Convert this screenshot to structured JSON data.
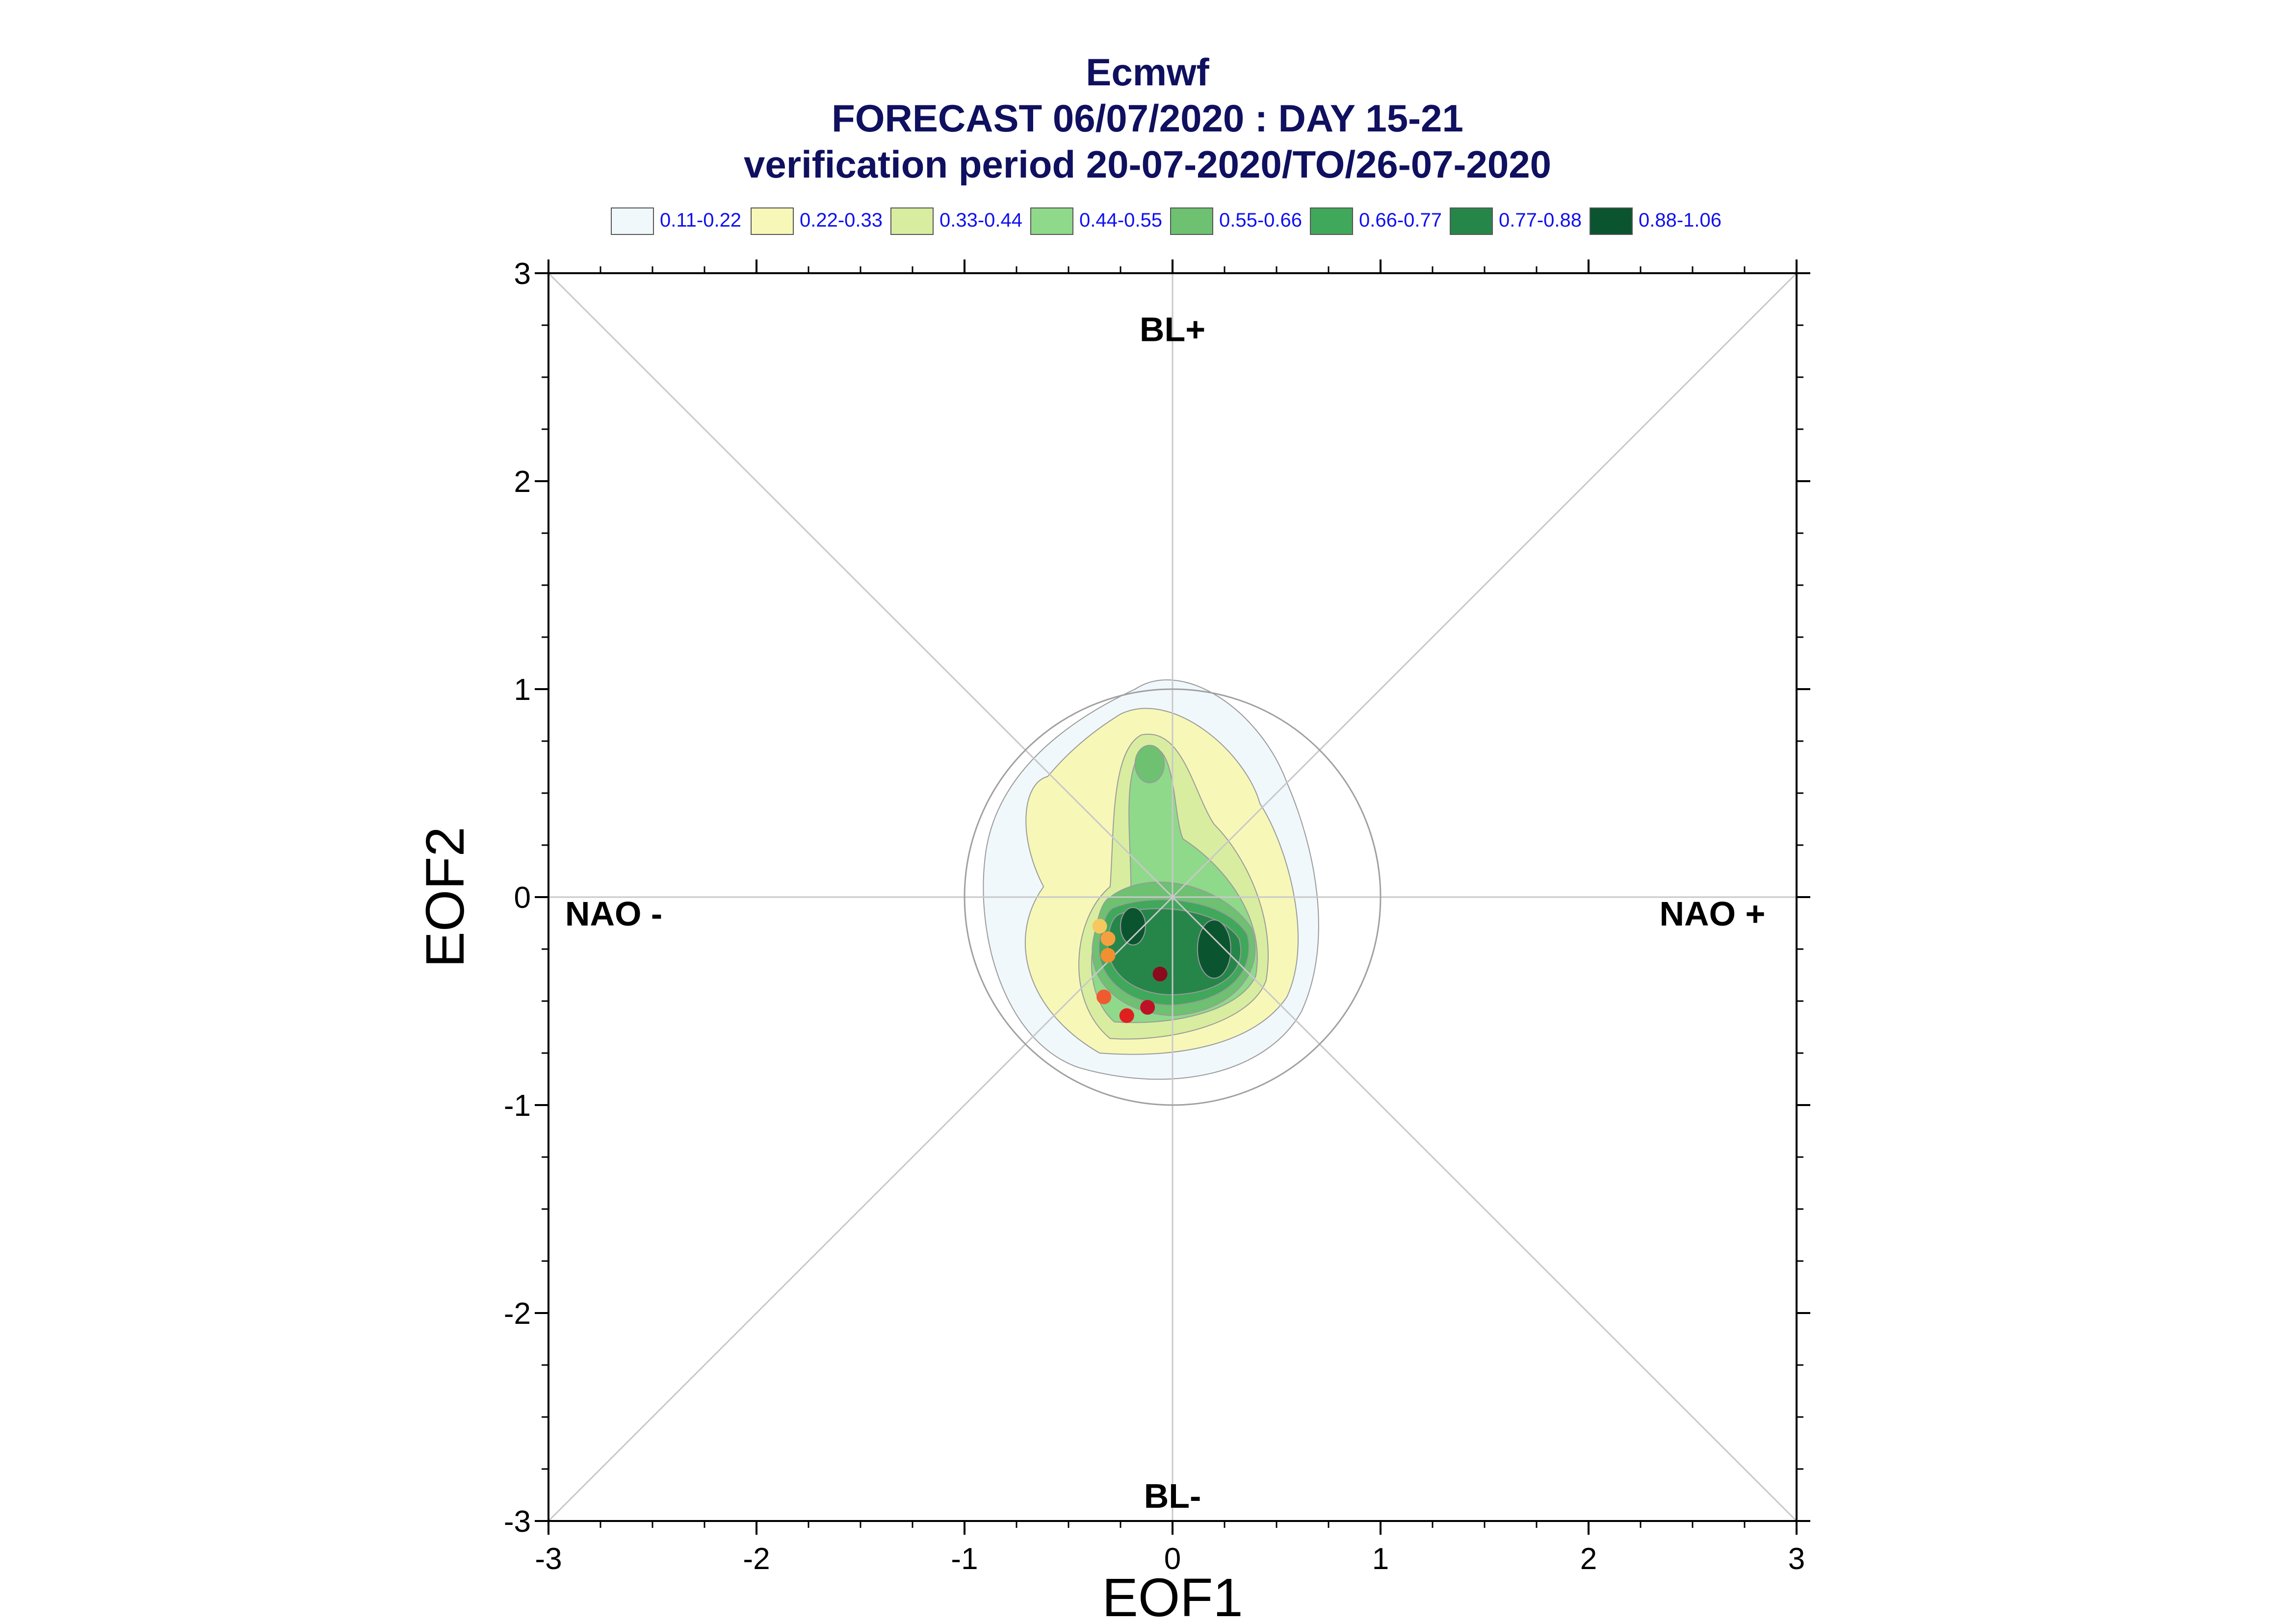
{
  "title": {
    "line1": "Ecmwf",
    "line2": "FORECAST 06/07/2020 : DAY 15-21",
    "line3": "verification period 20-07-2020/TO/26-07-2020"
  },
  "legend": [
    {
      "label": "0.11-0.22",
      "color": "#f0f8fc"
    },
    {
      "label": "0.22-0.33",
      "color": "#f7f8b8"
    },
    {
      "label": "0.33-0.44",
      "color": "#d9eda0"
    },
    {
      "label": "0.44-0.55",
      "color": "#8fd98a"
    },
    {
      "label": "0.55-0.66",
      "color": "#6dc171"
    },
    {
      "label": "0.66-0.77",
      "color": "#40a85a"
    },
    {
      "label": "0.77-0.88",
      "color": "#26864a"
    },
    {
      "label": "0.88-1.06",
      "color": "#0a5530"
    }
  ],
  "chart_data": {
    "type": "scatter",
    "xlabel": "EOF1",
    "ylabel": "EOF2",
    "xlim": [
      -3,
      3
    ],
    "ylim": [
      -3,
      3
    ],
    "x_ticks": [
      "-3",
      "-2",
      "-1",
      "0",
      "1",
      "2",
      "3"
    ],
    "y_ticks": [
      "-3",
      "-2",
      "-1",
      "0",
      "1",
      "2",
      "3"
    ],
    "regime_labels": {
      "top": "BL+",
      "bottom": "BL-",
      "left": "NAO -",
      "right": "NAO +"
    },
    "unit_circle_radius": 1.0,
    "density_levels": [
      0.11,
      0.22,
      0.33,
      0.44,
      0.55,
      0.66,
      0.77,
      0.88,
      1.06
    ],
    "points": [
      {
        "x": -0.35,
        "y": -0.14,
        "color": "#f7c860"
      },
      {
        "x": -0.31,
        "y": -0.2,
        "color": "#f5a040"
      },
      {
        "x": -0.31,
        "y": -0.28,
        "color": "#f09030"
      },
      {
        "x": -0.33,
        "y": -0.48,
        "color": "#f05a30"
      },
      {
        "x": -0.22,
        "y": -0.57,
        "color": "#e02020"
      },
      {
        "x": -0.12,
        "y": -0.53,
        "color": "#c01028"
      },
      {
        "x": -0.06,
        "y": -0.37,
        "color": "#8b0a1e"
      }
    ]
  }
}
